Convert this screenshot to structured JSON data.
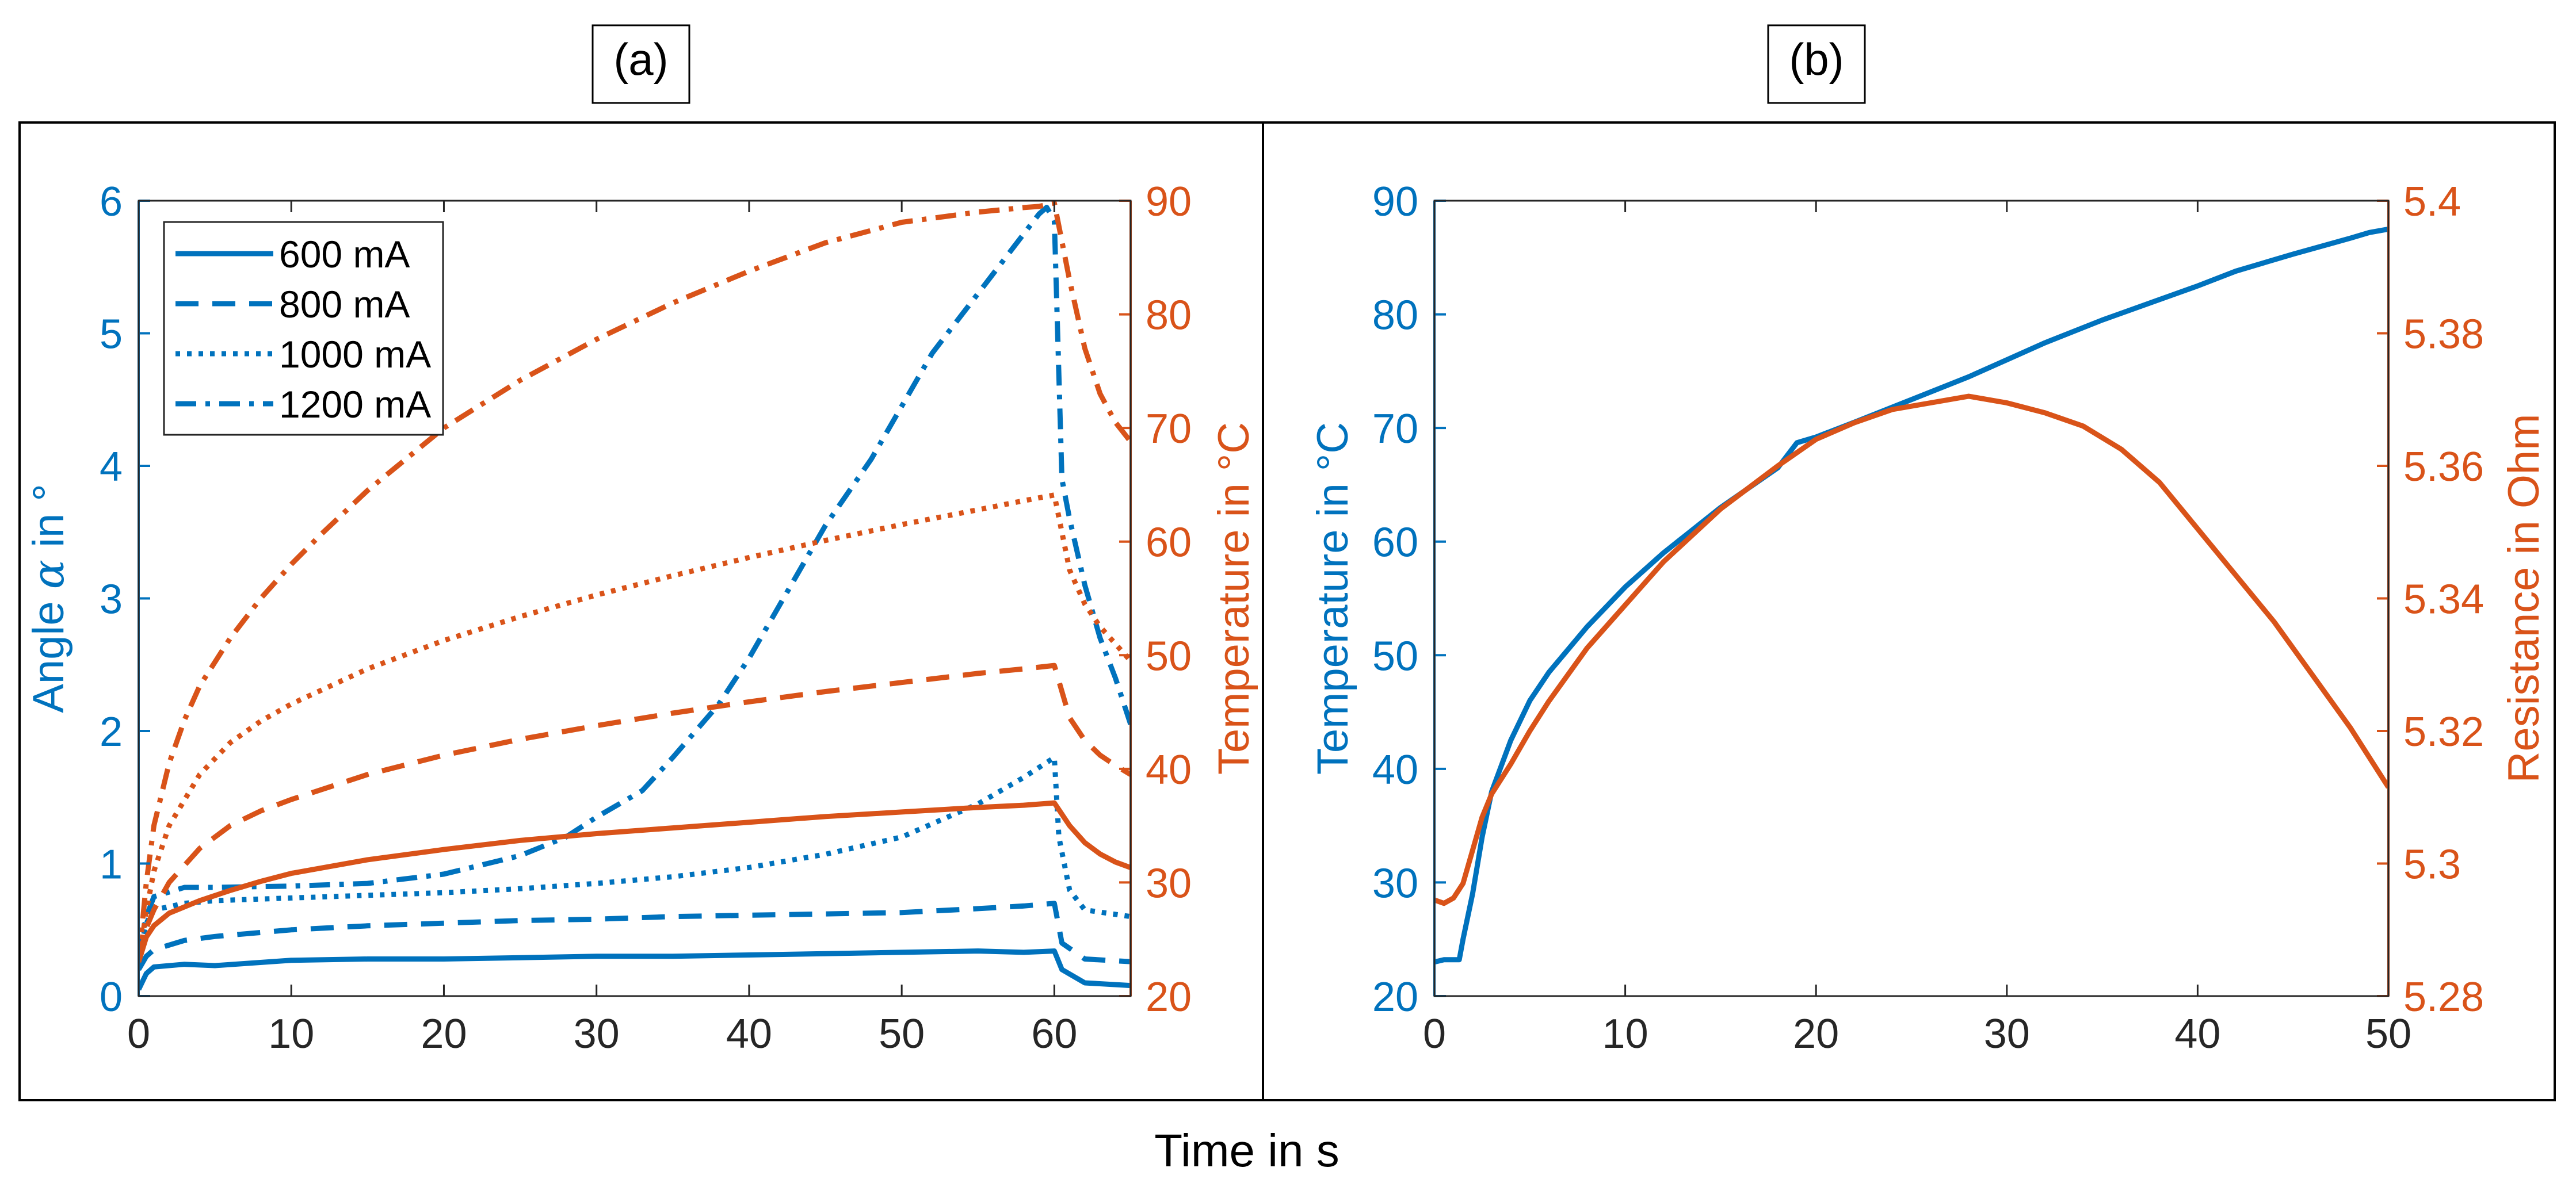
{
  "figure": {
    "panel_a_label": "(a)",
    "panel_b_label": "(b)",
    "shared_xlabel": "Time in s"
  },
  "colors": {
    "blue": "#0072BD",
    "orange": "#D95319",
    "axis": "#262626",
    "frame": "#000000"
  },
  "chart_data": [
    {
      "id": "a",
      "type": "line",
      "title": "(a)",
      "xlabel": "Time in s",
      "xlim": [
        0,
        65
      ],
      "xticks": [
        0,
        10,
        20,
        30,
        40,
        50,
        60
      ],
      "left_axis": {
        "label": "Angle α in °",
        "label_parts": [
          "Angle ",
          "α",
          " in °"
        ],
        "lim": [
          0,
          6
        ],
        "ticks": [
          0,
          1,
          2,
          3,
          4,
          5,
          6
        ],
        "color": "#0072BD"
      },
      "right_axis": {
        "label": "Temperature in °C",
        "lim": [
          20,
          90
        ],
        "ticks": [
          20,
          30,
          40,
          50,
          60,
          70,
          80,
          90
        ],
        "color": "#D95319"
      },
      "legend": {
        "position": "top-left",
        "entries": [
          {
            "label": "600 mA",
            "style": "solid"
          },
          {
            "label": "800 mA",
            "style": "dashed"
          },
          {
            "label": "1000 mA",
            "style": "dotted"
          },
          {
            "label": "1200 mA",
            "style": "dashdot"
          }
        ]
      },
      "series": [
        {
          "name": "600 mA angle",
          "axis": "left",
          "style": "solid",
          "x": [
            0,
            0.5,
            1,
            3,
            5,
            10,
            15,
            20,
            25,
            30,
            35,
            40,
            45,
            50,
            55,
            58,
            60,
            60.5,
            62,
            65
          ],
          "y": [
            0.05,
            0.17,
            0.22,
            0.24,
            0.23,
            0.27,
            0.28,
            0.28,
            0.29,
            0.3,
            0.3,
            0.31,
            0.32,
            0.33,
            0.34,
            0.33,
            0.34,
            0.2,
            0.1,
            0.08
          ]
        },
        {
          "name": "800 mA angle",
          "axis": "left",
          "style": "dashed",
          "x": [
            0,
            0.5,
            1,
            3,
            5,
            10,
            15,
            20,
            25,
            30,
            35,
            40,
            45,
            50,
            55,
            58,
            60,
            60.5,
            62,
            65
          ],
          "y": [
            0.2,
            0.3,
            0.35,
            0.42,
            0.45,
            0.5,
            0.53,
            0.55,
            0.57,
            0.58,
            0.6,
            0.61,
            0.62,
            0.63,
            0.66,
            0.68,
            0.7,
            0.4,
            0.28,
            0.26
          ]
        },
        {
          "name": "1000 mA angle",
          "axis": "left",
          "style": "dotted",
          "x": [
            0,
            0.5,
            1,
            3,
            5,
            10,
            15,
            20,
            25,
            30,
            35,
            40,
            45,
            50,
            55,
            58,
            60,
            60.3,
            61,
            62,
            65
          ],
          "y": [
            0.3,
            0.55,
            0.65,
            0.7,
            0.72,
            0.74,
            0.76,
            0.78,
            0.81,
            0.85,
            0.9,
            0.97,
            1.07,
            1.2,
            1.45,
            1.65,
            1.8,
            1.2,
            0.8,
            0.65,
            0.6
          ]
        },
        {
          "name": "1200 mA angle",
          "axis": "left",
          "style": "dashdot",
          "x": [
            0,
            0.5,
            1,
            3,
            5,
            10,
            15,
            20,
            25,
            28,
            30,
            33,
            35,
            38,
            40,
            42,
            45,
            48,
            50,
            52,
            55,
            57,
            58,
            59,
            59.5,
            60,
            60.5,
            61,
            62,
            63,
            64,
            65
          ],
          "y": [
            0.3,
            0.6,
            0.75,
            0.82,
            0.82,
            0.83,
            0.85,
            0.92,
            1.06,
            1.2,
            1.35,
            1.55,
            1.8,
            2.2,
            2.55,
            2.95,
            3.55,
            4.05,
            4.45,
            4.85,
            5.3,
            5.6,
            5.75,
            5.9,
            5.95,
            5.85,
            3.9,
            3.6,
            3.1,
            2.7,
            2.4,
            2.05
          ]
        },
        {
          "name": "600 mA temperature",
          "axis": "right",
          "style": "solid",
          "x": [
            0,
            0.5,
            1,
            2,
            4,
            6,
            8,
            10,
            15,
            20,
            25,
            30,
            35,
            40,
            45,
            50,
            55,
            58,
            60,
            61,
            62,
            63,
            64,
            65
          ],
          "y": [
            23,
            25.2,
            26.2,
            27.3,
            28.4,
            29.3,
            30.1,
            30.8,
            32,
            32.9,
            33.7,
            34.3,
            34.8,
            35.3,
            35.8,
            36.2,
            36.6,
            36.8,
            37,
            35,
            33.5,
            32.5,
            31.8,
            31.3
          ]
        },
        {
          "name": "800 mA temperature",
          "axis": "right",
          "style": "dashed",
          "x": [
            0,
            0.5,
            1,
            2,
            4,
            6,
            8,
            10,
            15,
            20,
            25,
            30,
            35,
            40,
            45,
            50,
            55,
            58,
            60,
            61,
            62,
            63,
            64,
            65
          ],
          "y": [
            23,
            26,
            27.6,
            30,
            33,
            35,
            36.3,
            37.3,
            39.5,
            41.2,
            42.6,
            43.8,
            44.9,
            45.9,
            46.8,
            47.6,
            48.4,
            48.8,
            49.1,
            44.5,
            42.5,
            41.2,
            40.3,
            39.5
          ]
        },
        {
          "name": "1000 mA temperature",
          "axis": "right",
          "style": "dotted",
          "x": [
            0,
            0.5,
            1,
            2,
            4,
            6,
            8,
            10,
            15,
            20,
            25,
            30,
            35,
            40,
            45,
            50,
            55,
            58,
            60,
            61,
            62,
            63,
            64,
            65
          ],
          "y": [
            23,
            27.5,
            31,
            35,
            39.5,
            42.3,
            44.2,
            45.7,
            48.8,
            51.3,
            53.4,
            55.3,
            57,
            58.6,
            60.1,
            61.5,
            62.8,
            63.6,
            64.1,
            57.5,
            54.5,
            52.5,
            51,
            49.5
          ]
        },
        {
          "name": "1200 mA temperature",
          "axis": "right",
          "style": "dashdot",
          "x": [
            0,
            0.5,
            1,
            2,
            3,
            4,
            6,
            8,
            10,
            12,
            15,
            18,
            20,
            25,
            30,
            35,
            40,
            45,
            50,
            55,
            58,
            59,
            60,
            61,
            62,
            63,
            64,
            65
          ],
          "y": [
            23,
            30,
            35,
            40.5,
            44.3,
            47.3,
            51.5,
            55,
            58,
            60.7,
            64.5,
            67.8,
            70,
            74.2,
            77.8,
            81,
            83.8,
            86.3,
            88.1,
            89,
            89.4,
            89.5,
            89.8,
            83,
            77,
            73,
            70.5,
            68.8
          ]
        }
      ]
    },
    {
      "id": "b",
      "type": "line",
      "title": "(b)",
      "xlabel": "Time in s",
      "xlim": [
        0,
        50
      ],
      "xticks": [
        0,
        10,
        20,
        30,
        40,
        50
      ],
      "left_axis": {
        "label": "Temperature in °C",
        "lim": [
          20,
          90
        ],
        "ticks": [
          20,
          30,
          40,
          50,
          60,
          70,
          80,
          90
        ],
        "color": "#0072BD"
      },
      "right_axis": {
        "label": "Resistance in Ohm",
        "lim": [
          5.28,
          5.4
        ],
        "ticks": [
          5.28,
          5.3,
          5.32,
          5.34,
          5.36,
          5.38,
          5.4
        ],
        "tick_labels": [
          "5.28",
          "5.3",
          "5.32",
          "5.34",
          "5.36",
          "5.38",
          "5.4"
        ],
        "color": "#D95319"
      },
      "series": [
        {
          "name": "Temperature",
          "axis": "left",
          "style": "solid",
          "x": [
            0,
            0.5,
            1,
            1.3,
            1.5,
            2,
            2.5,
            3,
            4,
            5,
            6,
            8,
            10,
            12,
            15,
            18,
            19,
            20,
            22,
            25,
            28,
            30,
            32,
            35,
            38,
            40,
            42,
            45,
            48,
            49,
            50
          ],
          "y": [
            23,
            23.2,
            23.2,
            23.2,
            25,
            29,
            34,
            38,
            42.5,
            46,
            48.5,
            52.5,
            56,
            59,
            63,
            66.5,
            68.7,
            69.2,
            70.5,
            72.5,
            74.5,
            76,
            77.5,
            79.5,
            81.3,
            82.5,
            83.8,
            85.3,
            86.7,
            87.2,
            87.5
          ]
        },
        {
          "name": "Resistance",
          "axis": "right",
          "style": "solid",
          "x": [
            0,
            0.5,
            1,
            1.5,
            2,
            2.5,
            3,
            4,
            5,
            6,
            8,
            10,
            12,
            15,
            18,
            20,
            22,
            24,
            26,
            28,
            30,
            32,
            34,
            36,
            38,
            40,
            42,
            44,
            46,
            48,
            50
          ],
          "y": [
            5.2945,
            5.294,
            5.2948,
            5.297,
            5.302,
            5.307,
            5.3105,
            5.315,
            5.32,
            5.3245,
            5.3325,
            5.339,
            5.3455,
            5.3535,
            5.36,
            5.364,
            5.3665,
            5.3685,
            5.3695,
            5.3705,
            5.3695,
            5.368,
            5.366,
            5.3625,
            5.3575,
            5.3505,
            5.3435,
            5.3365,
            5.3285,
            5.3205,
            5.3115
          ]
        }
      ]
    }
  ]
}
